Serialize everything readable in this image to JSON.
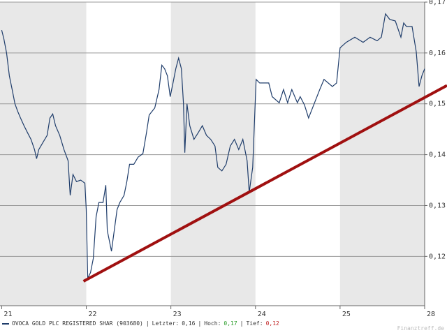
{
  "chart_data": {
    "type": "line",
    "xticks": [
      {
        "value": 0,
        "label": "21"
      },
      {
        "value": 1,
        "label": "22"
      },
      {
        "value": 2,
        "label": "23"
      },
      {
        "value": 3,
        "label": "24"
      },
      {
        "value": 4,
        "label": "25"
      },
      {
        "value": 5,
        "label": "28"
      }
    ],
    "xlim": [
      -0.02,
      5
    ],
    "ylim": [
      0.1103,
      0.17
    ],
    "yticks": [
      {
        "value": 0.12,
        "label": "0,12"
      },
      {
        "value": 0.13,
        "label": "0,13"
      },
      {
        "value": 0.14,
        "label": "0,14"
      },
      {
        "value": 0.15,
        "label": "0,15"
      },
      {
        "value": 0.16,
        "label": "0,16"
      },
      {
        "value": 0.17,
        "label": "0,17"
      }
    ],
    "grid": true,
    "band_color": "#e8e8e8",
    "series": [
      {
        "name": "OVOCA GOLD PLC REGISTERED SHAR (903680)",
        "color": "#1f3d6b",
        "x": [
          0,
          0.025,
          0.058,
          0.091,
          0.124,
          0.157,
          0.19,
          0.223,
          0.264,
          0.306,
          0.347,
          0.388,
          0.413,
          0.438,
          0.488,
          0.537,
          0.57,
          0.603,
          0.636,
          0.686,
          0.736,
          0.785,
          0.81,
          0.843,
          0.884,
          0.934,
          0.983,
          1.0,
          1.017,
          1.05,
          1.083,
          1.116,
          1.149,
          1.198,
          1.231,
          1.248,
          1.298,
          1.331,
          1.364,
          1.397,
          1.446,
          1.479,
          1.512,
          1.562,
          1.612,
          1.669,
          1.711,
          1.744,
          1.81,
          1.86,
          1.893,
          1.926,
          1.959,
          1.992,
          2.025,
          2.058,
          2.091,
          2.124,
          2.149,
          2.165,
          2.19,
          2.223,
          2.273,
          2.322,
          2.372,
          2.421,
          2.471,
          2.521,
          2.554,
          2.603,
          2.653,
          2.702,
          2.752,
          2.802,
          2.851,
          2.901,
          2.926,
          2.967,
          3.008,
          3.05,
          3.157,
          3.198,
          3.281,
          3.331,
          3.38,
          3.43,
          3.496,
          3.529,
          3.579,
          3.628,
          3.694,
          3.76,
          3.81,
          3.909,
          3.959,
          4.0,
          4.074,
          4.174,
          4.273,
          4.355,
          4.438,
          4.488,
          4.537,
          4.587,
          4.653,
          4.719,
          4.752,
          4.785,
          4.851,
          4.901,
          4.934,
          4.967,
          5.0
        ],
        "values": [
          0.1645,
          0.1628,
          0.16,
          0.1555,
          0.1528,
          0.15,
          0.1485,
          0.1472,
          0.1457,
          0.1443,
          0.143,
          0.141,
          0.1392,
          0.141,
          0.1424,
          0.1438,
          0.1472,
          0.148,
          0.1457,
          0.1438,
          0.141,
          0.1388,
          0.132,
          0.1361,
          0.1347,
          0.135,
          0.1344,
          0.1292,
          0.1157,
          0.1168,
          0.1196,
          0.1278,
          0.1306,
          0.1306,
          0.134,
          0.1251,
          0.121,
          0.1251,
          0.1292,
          0.1306,
          0.132,
          0.1347,
          0.1381,
          0.1381,
          0.1395,
          0.1402,
          0.1443,
          0.1478,
          0.1492,
          0.1528,
          0.1576,
          0.1569,
          0.1555,
          0.1514,
          0.1541,
          0.1569,
          0.159,
          0.1569,
          0.15,
          0.1404,
          0.15,
          0.1457,
          0.143,
          0.1443,
          0.1457,
          0.1438,
          0.143,
          0.1417,
          0.1375,
          0.1368,
          0.1381,
          0.1417,
          0.143,
          0.141,
          0.143,
          0.1388,
          0.1326,
          0.1375,
          0.1548,
          0.1541,
          0.1541,
          0.1514,
          0.1502,
          0.1528,
          0.1502,
          0.1528,
          0.1502,
          0.1514,
          0.1498,
          0.1472,
          0.15,
          0.1528,
          0.1548,
          0.1534,
          0.1541,
          0.161,
          0.1621,
          0.1631,
          0.1621,
          0.1631,
          0.1624,
          0.1631,
          0.1677,
          0.1666,
          0.1663,
          0.1631,
          0.1659,
          0.1652,
          0.1652,
          0.1602,
          0.1534,
          0.1555,
          0.1569
        ]
      }
    ],
    "trendline": {
      "color": "#a01010",
      "x": [
        0.967,
        5.264
      ],
      "values": [
        0.1151,
        0.1536
      ]
    },
    "footer": {
      "sep": "|",
      "last_label": "Letzter:",
      "last": "0,16",
      "high_label": "Hoch:",
      "high": "0,17",
      "high_color": "#2a9d2a",
      "low_label": "Tief:",
      "low": "0,12",
      "low_color": "#c02020"
    },
    "watermark": "Finanztreff.de"
  }
}
